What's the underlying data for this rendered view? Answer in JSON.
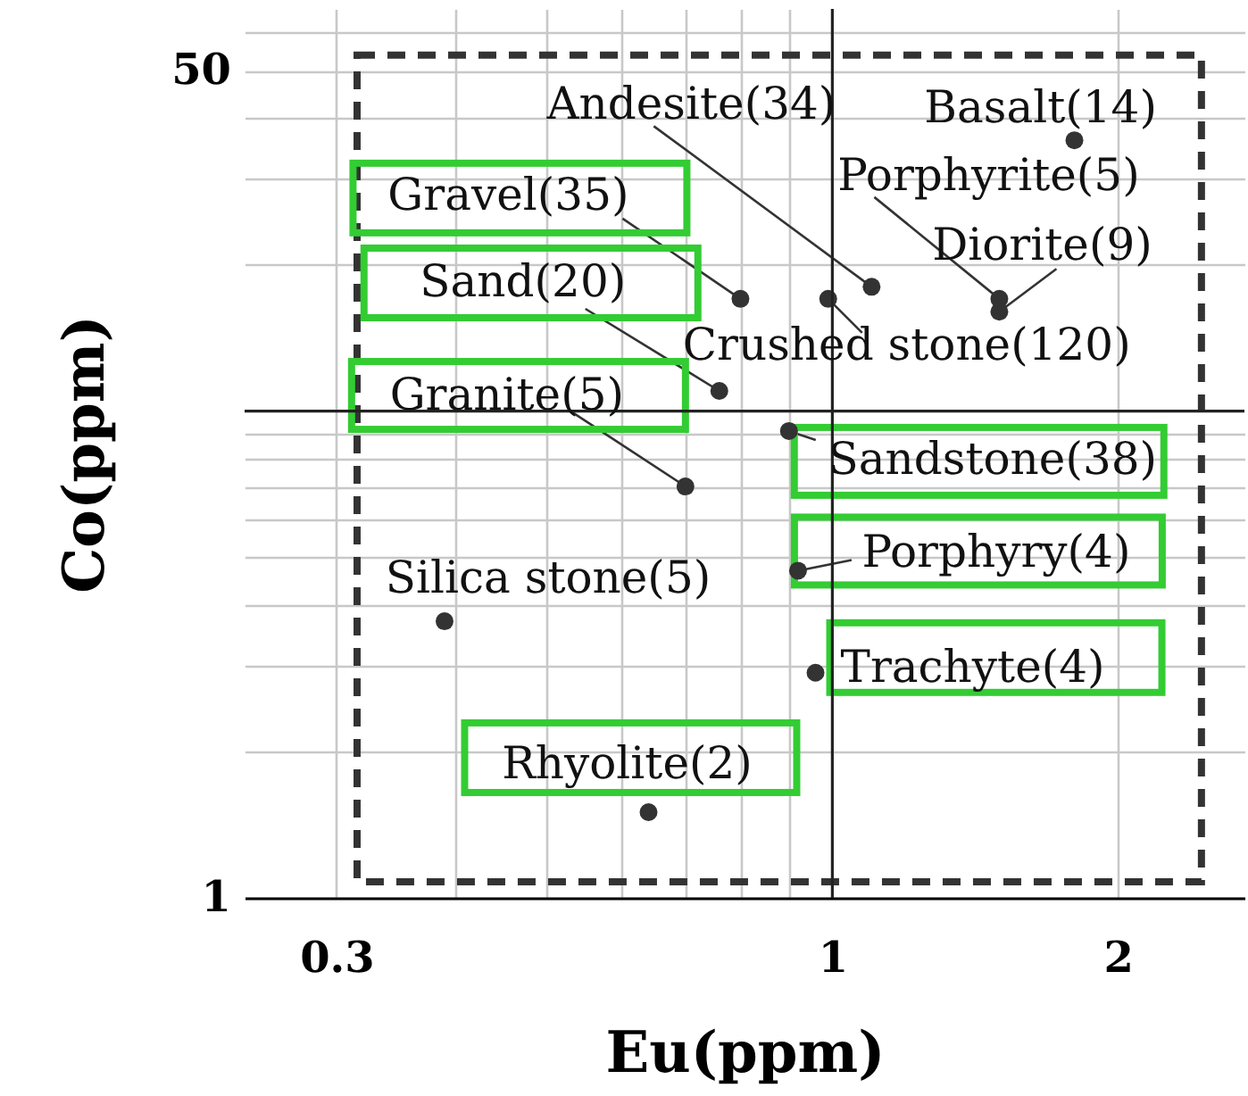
{
  "chart_data": {
    "type": "scatter",
    "xlabel": "Eu(ppm)",
    "ylabel": "Co(ppm)",
    "log": "xy",
    "x": [
      1.1,
      1.8,
      1.5,
      1.5,
      0.8,
      0.99,
      0.76,
      0.7,
      0.9,
      0.92,
      0.39,
      0.96,
      0.64
    ],
    "values": [
      18,
      36,
      17,
      16,
      17,
      17,
      11,
      7,
      9.1,
      4.7,
      3.7,
      2.9,
      1.5
    ],
    "color": "#333333",
    "marker": "circle",
    "xlim": [
      0.24,
      2.72
    ],
    "ylim": [
      1,
      67
    ],
    "xticks": [
      0.3,
      {
        "value": 0.4,
        "label": null
      },
      {
        "value": 0.5,
        "label": null
      },
      {
        "value": 0.6,
        "label": null
      },
      {
        "value": 0.7,
        "label": null
      },
      {
        "value": 0.8,
        "label": null
      },
      {
        "value": 0.9,
        "label": null
      },
      1,
      2
    ],
    "yticks": [
      1,
      {
        "value": 2,
        "label": null
      },
      {
        "value": 3,
        "label": null
      },
      {
        "value": 4,
        "label": null
      },
      {
        "value": 5,
        "label": null
      },
      {
        "value": 6,
        "label": null
      },
      {
        "value": 7,
        "label": null
      },
      {
        "value": 8,
        "label": null
      },
      {
        "value": 9,
        "label": null
      },
      {
        "value": 20,
        "label": null
      },
      {
        "value": 30,
        "label": null
      },
      {
        "value": 40,
        "label": null
      },
      50,
      {
        "value": 60,
        "label": null
      }
    ],
    "grid": true,
    "ref_lines": [
      {
        "axis": "x",
        "value": 1,
        "color": "#222222"
      },
      {
        "axis": "y",
        "value": 10,
        "color": "#222222"
      }
    ],
    "annotations": [
      {
        "text": "Andesite(34)",
        "x": 1.1,
        "y": 18
      },
      {
        "text": "Basalt(14)",
        "x": 1.8,
        "y": 36
      },
      {
        "text": "Porphyrite(5)",
        "x": 1.5,
        "y": 17
      },
      {
        "text": "Diorite(9)",
        "x": 1.5,
        "y": 16
      },
      {
        "text": "Gravel(35)",
        "x": 0.8,
        "y": 17
      },
      {
        "text": "Crushed stone(120)",
        "x": 0.99,
        "y": 17
      },
      {
        "text": "Sand(20)",
        "x": 0.76,
        "y": 11
      },
      {
        "text": "Granite(5)",
        "x": 0.7,
        "y": 7
      },
      {
        "text": "Sandstone(38)",
        "x": 0.9,
        "y": 9.1
      },
      {
        "text": "Porphyry(4)",
        "x": 0.92,
        "y": 4.7
      },
      {
        "text": "Silica stone(5)",
        "x": 0.39,
        "y": 3.7
      },
      {
        "text": "Trachyte(4)",
        "x": 0.96,
        "y": 2.9
      },
      {
        "text": "Rhyolite(2)",
        "x": 0.64,
        "y": 1.5
      }
    ]
  }
}
